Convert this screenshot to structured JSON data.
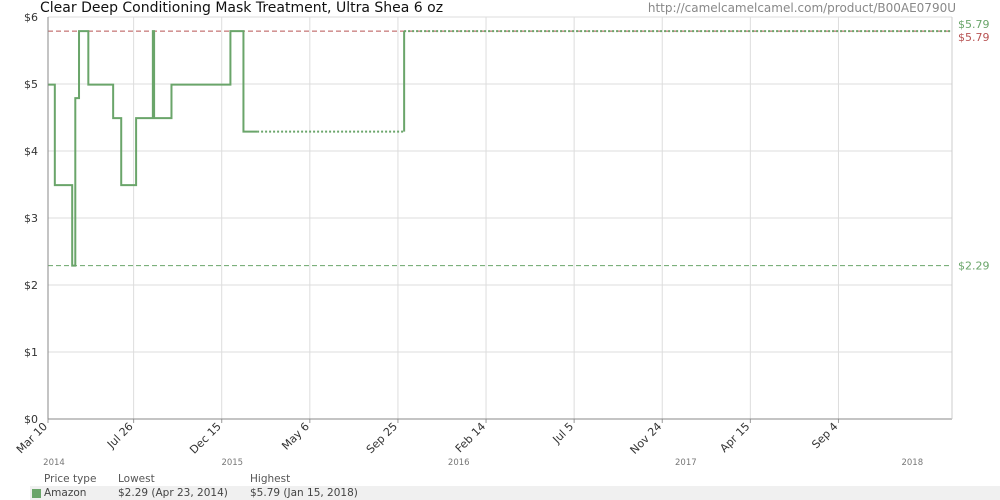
{
  "header": {
    "title": "Clear Deep Conditioning Mask Treatment, Ultra Shea 6 oz",
    "url": "http://camelcamelcamel.com/product/B00AE0790U"
  },
  "chart_data": {
    "type": "line",
    "title": "Clear Deep Conditioning Mask Treatment, Ultra Shea 6 oz",
    "x_range": [
      "2014-03-10",
      "2018-03-06"
    ],
    "ylim": [
      0,
      6
    ],
    "y_ticks": [
      {
        "value": 0,
        "label": "$0"
      },
      {
        "value": 1,
        "label": "$1"
      },
      {
        "value": 2,
        "label": "$2"
      },
      {
        "value": 3,
        "label": "$3"
      },
      {
        "value": 4,
        "label": "$4"
      },
      {
        "value": 5,
        "label": "$5"
      },
      {
        "value": 6,
        "label": "$6"
      }
    ],
    "x_ticks": [
      {
        "date": "2014-03-10",
        "label": "Mar 10"
      },
      {
        "date": "2014-07-26",
        "label": "Jul 26"
      },
      {
        "date": "2014-12-15",
        "label": "Dec 15"
      },
      {
        "date": "2015-05-06",
        "label": "May 6"
      },
      {
        "date": "2015-09-25",
        "label": "Sep 25"
      },
      {
        "date": "2016-02-14",
        "label": "Feb 14"
      },
      {
        "date": "2016-07-05",
        "label": "Jul 5"
      },
      {
        "date": "2016-11-24",
        "label": "Nov 24"
      },
      {
        "date": "2017-04-15",
        "label": "Apr 15"
      },
      {
        "date": "2017-09-04",
        "label": "Sep 4"
      }
    ],
    "year_labels": [
      {
        "date": "2014-01-01",
        "label": "2014"
      },
      {
        "date": "2015-01-01",
        "label": "2015"
      },
      {
        "date": "2016-01-01",
        "label": "2016"
      },
      {
        "date": "2017-01-01",
        "label": "2017"
      },
      {
        "date": "2018-01-01",
        "label": "2018"
      }
    ],
    "grid": true,
    "series": [
      {
        "name": "Amazon",
        "color": "#6aa56a",
        "step": true,
        "points": [
          {
            "date": "2014-03-10",
            "value": 4.99
          },
          {
            "date": "2014-03-21",
            "value": 3.49
          },
          {
            "date": "2014-04-06",
            "value": 3.49
          },
          {
            "date": "2014-04-13",
            "value": 3.49
          },
          {
            "date": "2014-04-18",
            "value": 2.29
          },
          {
            "date": "2014-04-23",
            "value": 4.79
          },
          {
            "date": "2014-04-29",
            "value": 5.79
          },
          {
            "date": "2014-05-14",
            "value": 4.99
          },
          {
            "date": "2014-06-23",
            "value": 4.49
          },
          {
            "date": "2014-07-06",
            "value": 3.49
          },
          {
            "date": "2014-07-30",
            "value": 4.49
          },
          {
            "date": "2014-08-26",
            "value": 5.79
          },
          {
            "date": "2014-08-28",
            "value": 4.49
          },
          {
            "date": "2014-09-25",
            "value": 4.99
          },
          {
            "date": "2014-11-14",
            "value": 4.99
          },
          {
            "date": "2014-12-29",
            "value": 5.79
          },
          {
            "date": "2015-01-19",
            "value": 4.29
          },
          {
            "date": "2015-02-10",
            "value": 4.29,
            "gap": true
          },
          {
            "date": "2015-10-05",
            "value": 5.79,
            "gap_end": true
          },
          {
            "date": "2018-03-06",
            "value": 5.79,
            "dotted": true
          }
        ]
      }
    ],
    "reference_lines": [
      {
        "name": "highest",
        "value": 5.79,
        "label": "$5.79",
        "color": "#b85454"
      },
      {
        "name": "amazon-highest",
        "value": 5.79,
        "label": "$5.79",
        "color": "#6aa56a"
      },
      {
        "name": "lowest",
        "value": 2.29,
        "label": "$2.29",
        "color": "#6aa56a"
      }
    ]
  },
  "legend": {
    "headers": {
      "type": "Price type",
      "lowest": "Lowest",
      "highest": "Highest"
    },
    "rows": [
      {
        "type": "Amazon",
        "lowest": "$2.29 (Apr 23, 2014)",
        "highest": "$5.79 (Jan 15, 2018)",
        "color": "#6aa56a"
      }
    ]
  }
}
